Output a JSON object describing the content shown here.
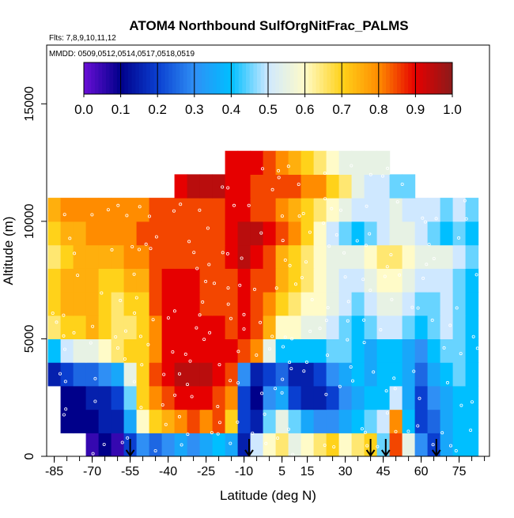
{
  "chart_data": {
    "type": "heatmap",
    "title": "ATOM4 Northbound SulfOrgNitFrac_PALMS",
    "subtitle_flights": "Flts: 7,8,9,10,11,12",
    "subtitle_dates": "MMDD: 0509,0512,0514,0517,0518,0519",
    "xlabel": "Latitude (deg N)",
    "ylabel": "Altitude (m)",
    "xlim": [
      -88,
      87
    ],
    "ylim": [
      0,
      17500
    ],
    "x_ticks": [
      -85,
      -70,
      -55,
      -40,
      -25,
      -10,
      5,
      15,
      30,
      45,
      60,
      75
    ],
    "x_minor_step": 5,
    "y_ticks": [
      0,
      5000,
      10000,
      15000
    ],
    "colorbar": {
      "range": [
        0.0,
        1.0
      ],
      "ticks": [
        "0.0",
        "0.1",
        "0.2",
        "0.3",
        "0.4",
        "0.5",
        "0.6",
        "0.7",
        "0.8",
        "0.9",
        "1.0"
      ],
      "colors": [
        "#6a0fd6",
        "#00008a",
        "#0a3fd0",
        "#2f8ff5",
        "#00bfff",
        "#cfe8ff",
        "#fffbc8",
        "#ffd21a",
        "#ff8c00",
        "#e60000",
        "#8b1a1a"
      ]
    },
    "arrow_latitudes": [
      -55,
      -8,
      40,
      46,
      66
    ],
    "lat_bins": [
      -85,
      -80,
      -75,
      -70,
      -65,
      -60,
      -55,
      -50,
      -45,
      -40,
      -35,
      -30,
      -25,
      -20,
      -15,
      -10,
      -5,
      0,
      5,
      10,
      15,
      20,
      25,
      30,
      35,
      40,
      45,
      50,
      55,
      60,
      65,
      70,
      75,
      80
    ],
    "alt_bins": [
      500,
      1500,
      2500,
      3500,
      4500,
      5500,
      6500,
      7500,
      8500,
      9500,
      10500,
      11500,
      12500
    ],
    "values": [
      [
        null,
        null,
        null,
        0.05,
        0.1,
        0.05,
        0.2,
        0.3,
        0.25,
        0.3,
        0.35,
        0.3,
        0.35,
        0.4,
        0.35,
        0.15,
        0.5,
        0.6,
        0.65,
        0.55,
        0.6,
        0.65,
        0.7,
        0.6,
        0.65,
        0.7,
        0.45,
        0.85,
        0.55,
        0.3,
        0.2,
        0.35,
        0.4,
        0.4
      ],
      [
        null,
        0.1,
        0.1,
        0.1,
        0.15,
        0.15,
        0.35,
        0.6,
        0.7,
        0.75,
        0.8,
        0.85,
        0.8,
        0.85,
        0.7,
        0.2,
        0.15,
        0.45,
        0.55,
        0.45,
        0.35,
        0.3,
        0.3,
        0.35,
        0.4,
        0.45,
        0.5,
        0.8,
        0.4,
        0.2,
        0.25,
        0.35,
        0.4,
        0.4
      ],
      [
        null,
        0.1,
        0.1,
        0.15,
        0.15,
        0.2,
        0.45,
        0.7,
        0.8,
        0.85,
        0.9,
        0.9,
        0.9,
        0.85,
        0.8,
        0.2,
        0.1,
        0.3,
        0.35,
        0.2,
        0.15,
        0.15,
        0.2,
        0.3,
        0.35,
        0.4,
        0.4,
        0.5,
        0.35,
        0.2,
        0.3,
        0.35,
        0.4,
        0.4
      ],
      [
        0.15,
        0.2,
        0.25,
        0.25,
        0.3,
        0.35,
        0.55,
        0.7,
        0.85,
        0.9,
        0.95,
        0.95,
        0.95,
        0.9,
        0.85,
        0.3,
        0.15,
        0.2,
        0.25,
        0.15,
        0.15,
        0.2,
        0.3,
        0.35,
        0.4,
        0.35,
        0.4,
        0.4,
        0.35,
        0.25,
        0.35,
        0.4,
        0.45,
        0.4
      ],
      [
        0.4,
        0.5,
        0.55,
        0.55,
        0.6,
        0.65,
        0.7,
        0.7,
        0.8,
        0.9,
        0.9,
        0.9,
        0.9,
        0.9,
        0.9,
        0.85,
        0.8,
        0.55,
        0.4,
        0.4,
        0.4,
        0.4,
        0.45,
        0.45,
        0.4,
        0.35,
        0.4,
        0.4,
        0.35,
        0.3,
        0.4,
        0.45,
        0.45,
        0.4
      ],
      [
        0.65,
        0.7,
        0.7,
        0.75,
        0.7,
        0.65,
        0.65,
        0.7,
        0.8,
        0.9,
        0.9,
        0.9,
        0.9,
        0.9,
        0.85,
        0.9,
        0.85,
        0.75,
        0.6,
        0.6,
        0.55,
        0.55,
        0.5,
        0.45,
        0.4,
        0.45,
        0.5,
        0.5,
        0.45,
        0.4,
        0.45,
        0.5,
        0.45,
        0.4
      ],
      [
        0.7,
        0.75,
        0.75,
        0.75,
        0.7,
        0.65,
        0.7,
        0.7,
        0.85,
        0.9,
        0.9,
        0.9,
        0.85,
        0.85,
        0.85,
        0.9,
        0.85,
        0.8,
        0.7,
        0.65,
        0.6,
        0.6,
        0.55,
        0.5,
        0.45,
        0.5,
        0.55,
        0.55,
        0.5,
        0.45,
        0.45,
        0.5,
        0.45,
        0.4
      ],
      [
        0.7,
        0.75,
        0.75,
        0.75,
        0.7,
        0.7,
        0.75,
        0.75,
        0.85,
        0.9,
        0.9,
        0.9,
        0.85,
        0.85,
        0.85,
        0.9,
        0.85,
        0.85,
        0.75,
        0.7,
        0.65,
        0.6,
        0.55,
        0.5,
        0.5,
        0.55,
        0.6,
        0.6,
        0.55,
        0.5,
        0.5,
        0.5,
        0.45,
        0.4
      ],
      [
        0.65,
        0.7,
        0.75,
        0.75,
        0.75,
        0.75,
        0.8,
        0.8,
        0.85,
        0.85,
        0.85,
        0.85,
        0.85,
        0.85,
        0.9,
        0.95,
        0.9,
        0.85,
        0.75,
        0.7,
        0.65,
        0.6,
        0.55,
        0.55,
        0.55,
        0.6,
        0.65,
        0.65,
        0.6,
        0.55,
        0.55,
        0.55,
        0.5,
        0.45
      ],
      [
        0.7,
        0.75,
        0.75,
        0.8,
        0.8,
        0.8,
        0.8,
        0.85,
        0.85,
        0.85,
        0.85,
        0.85,
        0.85,
        0.85,
        0.9,
        0.95,
        0.95,
        0.9,
        0.85,
        0.8,
        0.7,
        0.6,
        0.5,
        0.45,
        0.4,
        0.45,
        0.5,
        0.55,
        0.55,
        0.5,
        0.45,
        0.4,
        0.45,
        0.4
      ],
      [
        0.75,
        0.8,
        0.8,
        0.8,
        0.8,
        0.8,
        0.8,
        0.8,
        0.85,
        0.85,
        0.85,
        0.85,
        0.85,
        0.85,
        0.9,
        0.9,
        0.85,
        0.85,
        0.8,
        0.75,
        0.7,
        0.65,
        0.6,
        0.55,
        0.5,
        0.5,
        0.5,
        0.55,
        0.5,
        0.5,
        0.5,
        0.45,
        0.5,
        0.45
      ],
      [
        null,
        null,
        null,
        null,
        null,
        null,
        null,
        null,
        null,
        null,
        0.9,
        0.95,
        0.95,
        0.95,
        0.9,
        0.9,
        0.85,
        0.85,
        0.85,
        0.85,
        0.8,
        0.8,
        0.7,
        0.65,
        0.55,
        0.5,
        0.5,
        0.45,
        0.45,
        null,
        null,
        null,
        null,
        null
      ],
      [
        null,
        null,
        null,
        null,
        null,
        null,
        null,
        null,
        null,
        null,
        null,
        null,
        null,
        null,
        0.9,
        0.9,
        0.9,
        0.85,
        0.8,
        0.75,
        0.7,
        0.65,
        0.6,
        0.55,
        0.55,
        0.55,
        0.55,
        null,
        null,
        null,
        null,
        null,
        null,
        null
      ]
    ]
  }
}
